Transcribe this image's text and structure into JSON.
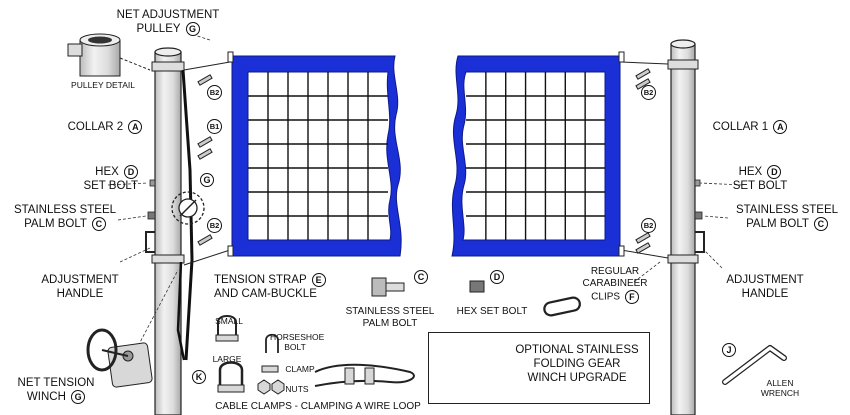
{
  "labels": {
    "net_adjustment_pulley_1": "NET ADJUSTMENT",
    "net_adjustment_pulley_2": "PULLEY",
    "pulley_detail": "PULLEY DETAIL",
    "collar_2": "COLLAR 2",
    "collar_1": "COLLAR 1",
    "hex_set_bolt_left_1": "HEX",
    "hex_set_bolt_left_2": "SET BOLT",
    "hex_set_bolt_right_1": "HEX",
    "hex_set_bolt_right_2": "SET BOLT",
    "ss_palm_bolt_left_1": "STAINLESS STEEL",
    "ss_palm_bolt_left_2": "PALM BOLT",
    "ss_palm_bolt_right_1": "STAINLESS STEEL",
    "ss_palm_bolt_right_2": "PALM BOLT",
    "adjustment_handle_left_1": "ADJUSTMENT",
    "adjustment_handle_left_2": "HANDLE",
    "adjustment_handle_right_1": "ADJUSTMENT",
    "adjustment_handle_right_2": "HANDLE",
    "tension_strap_1": "TENSION STRAP",
    "tension_strap_2": "AND CAM-BUCKLE",
    "net_tension_winch_1": "NET TENSION",
    "net_tension_winch_2": "WINCH",
    "ss_palm_bolt_part_1": "STAINLESS STEEL",
    "ss_palm_bolt_part_2": "PALM BOLT",
    "hex_set_bolt_part": "HEX SET BOLT",
    "carabiner_1": "REGULAR",
    "carabiner_2": "CARABINEER",
    "carabiner_3": "CLIPS",
    "small": "SMALL",
    "large": "LARGE",
    "horseshoe_1": "HORSESHOE",
    "horseshoe_2": "BOLT",
    "clamp": "CLAMP",
    "nuts": "NUTS",
    "cable_clamps": "CABLE CLAMPS - CLAMPING A WIRE LOOP",
    "optional_1": "OPTIONAL STAINLESS",
    "optional_2": "FOLDING GEAR",
    "optional_3": "WINCH UPGRADE",
    "allen_1": "ALLEN",
    "allen_2": "WRENCH"
  },
  "badges": {
    "A": "A",
    "B1": "B1",
    "B2": "B2",
    "C": "C",
    "D": "D",
    "E": "E",
    "F": "F",
    "G": "G",
    "J": "J",
    "K": "K"
  },
  "colors": {
    "net_band": "#1a2fd6",
    "pole_fill": "#e2e2e2",
    "line": "#222222"
  }
}
